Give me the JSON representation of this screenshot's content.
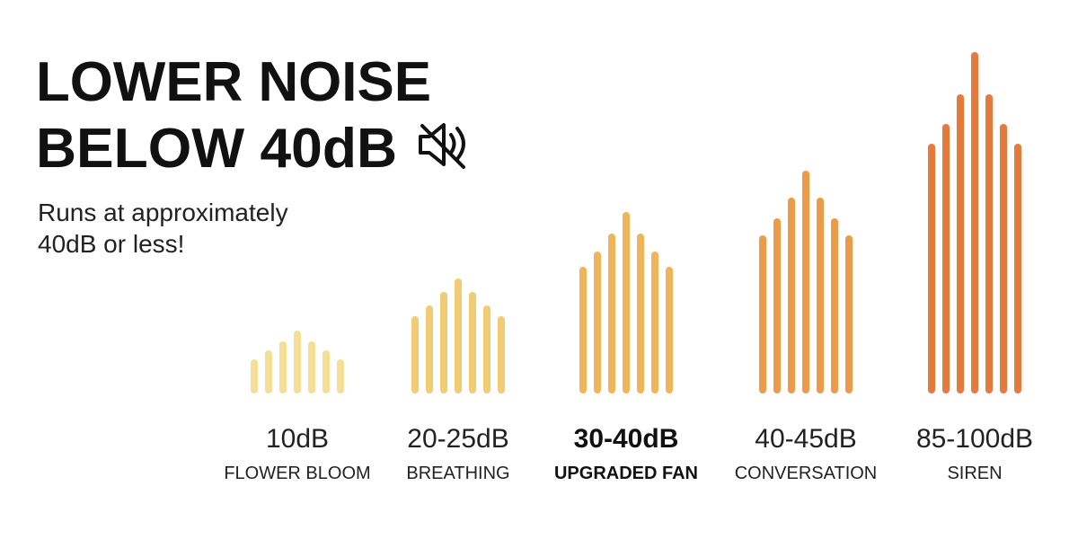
{
  "header": {
    "title_lines": [
      "LOWER NOISE",
      "BELOW 40dB"
    ],
    "subtitle_lines": [
      "Runs at approximately",
      "40dB or less!"
    ]
  },
  "levels": [
    {
      "label": "10dB",
      "name": "FLOWER BLOOM"
    },
    {
      "label": "20-25dB",
      "name": "BREATHING"
    },
    {
      "label": "30-40dB",
      "name": "UPGRADED FAN"
    },
    {
      "label": "40-45dB",
      "name": "CONVERSATION"
    },
    {
      "label": "85-100dB",
      "name": "SIREN"
    }
  ]
}
